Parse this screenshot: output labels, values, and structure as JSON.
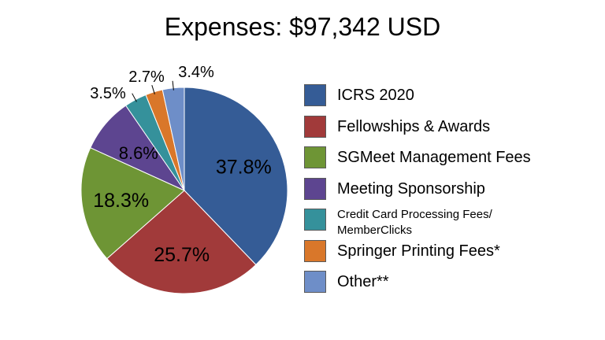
{
  "chart_data": {
    "type": "pie",
    "title": "Expenses: $97,342 USD",
    "legend_position": "right",
    "slices": [
      {
        "label": "ICRS 2020",
        "value": 37.8,
        "value_label": "37.8%",
        "color": "#355c96",
        "label_placement": "inside"
      },
      {
        "label": "Fellowships & Awards",
        "value": 25.7,
        "value_label": "25.7%",
        "color": "#a13a3a",
        "label_placement": "inside"
      },
      {
        "label": "SGMeet Management Fees",
        "value": 18.3,
        "value_label": "18.3%",
        "color": "#6e9535",
        "label_placement": "inside"
      },
      {
        "label": "Meeting Sponsorship",
        "value": 8.6,
        "value_label": "8.6%",
        "color": "#5d4590",
        "label_placement": "inside"
      },
      {
        "label": "Credit Card Processing Fees/\nMemberClicks",
        "value": 3.5,
        "value_label": "3.5%",
        "color": "#35919b",
        "label_placement": "outside"
      },
      {
        "label": "Springer Printing Fees*",
        "value": 2.7,
        "value_label": "2.7%",
        "color": "#d9772a",
        "label_placement": "outside"
      },
      {
        "label": "Other**",
        "value": 3.4,
        "value_label": "3.4%",
        "color": "#6e8ec8",
        "label_placement": "outside"
      }
    ]
  }
}
